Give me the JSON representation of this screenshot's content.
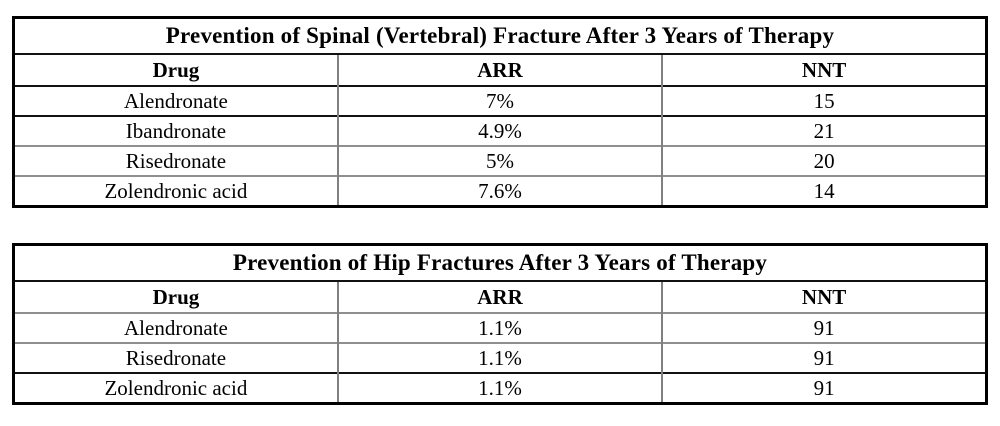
{
  "tables": [
    {
      "title": "Prevention of Spinal (Vertebral) Fracture After 3 Years of Therapy",
      "columns": {
        "drug": "Drug",
        "arr": "ARR",
        "nnt": "NNT"
      },
      "rows": [
        {
          "drug": "Alendronate",
          "arr": "7%",
          "nnt": "15"
        },
        {
          "drug": "Ibandronate",
          "arr": "4.9%",
          "nnt": "21"
        },
        {
          "drug": "Risedronate",
          "arr": "5%",
          "nnt": "20"
        },
        {
          "drug": "Zolendronic acid",
          "arr": "7.6%",
          "nnt": "14"
        }
      ]
    },
    {
      "title": "Prevention of Hip Fractures After 3 Years of Therapy",
      "columns": {
        "drug": "Drug",
        "arr": "ARR",
        "nnt": "NNT"
      },
      "rows": [
        {
          "drug": "Alendronate",
          "arr": "1.1%",
          "nnt": "91"
        },
        {
          "drug": "Risedronate",
          "arr": "1.1%",
          "nnt": "91"
        },
        {
          "drug": "Zolendronic acid",
          "arr": "1.1%",
          "nnt": "91"
        }
      ]
    }
  ],
  "colors": {
    "outer_border": "#000000",
    "inner_vertical_rule": "#808080",
    "text": "#000000",
    "background": "#ffffff"
  }
}
